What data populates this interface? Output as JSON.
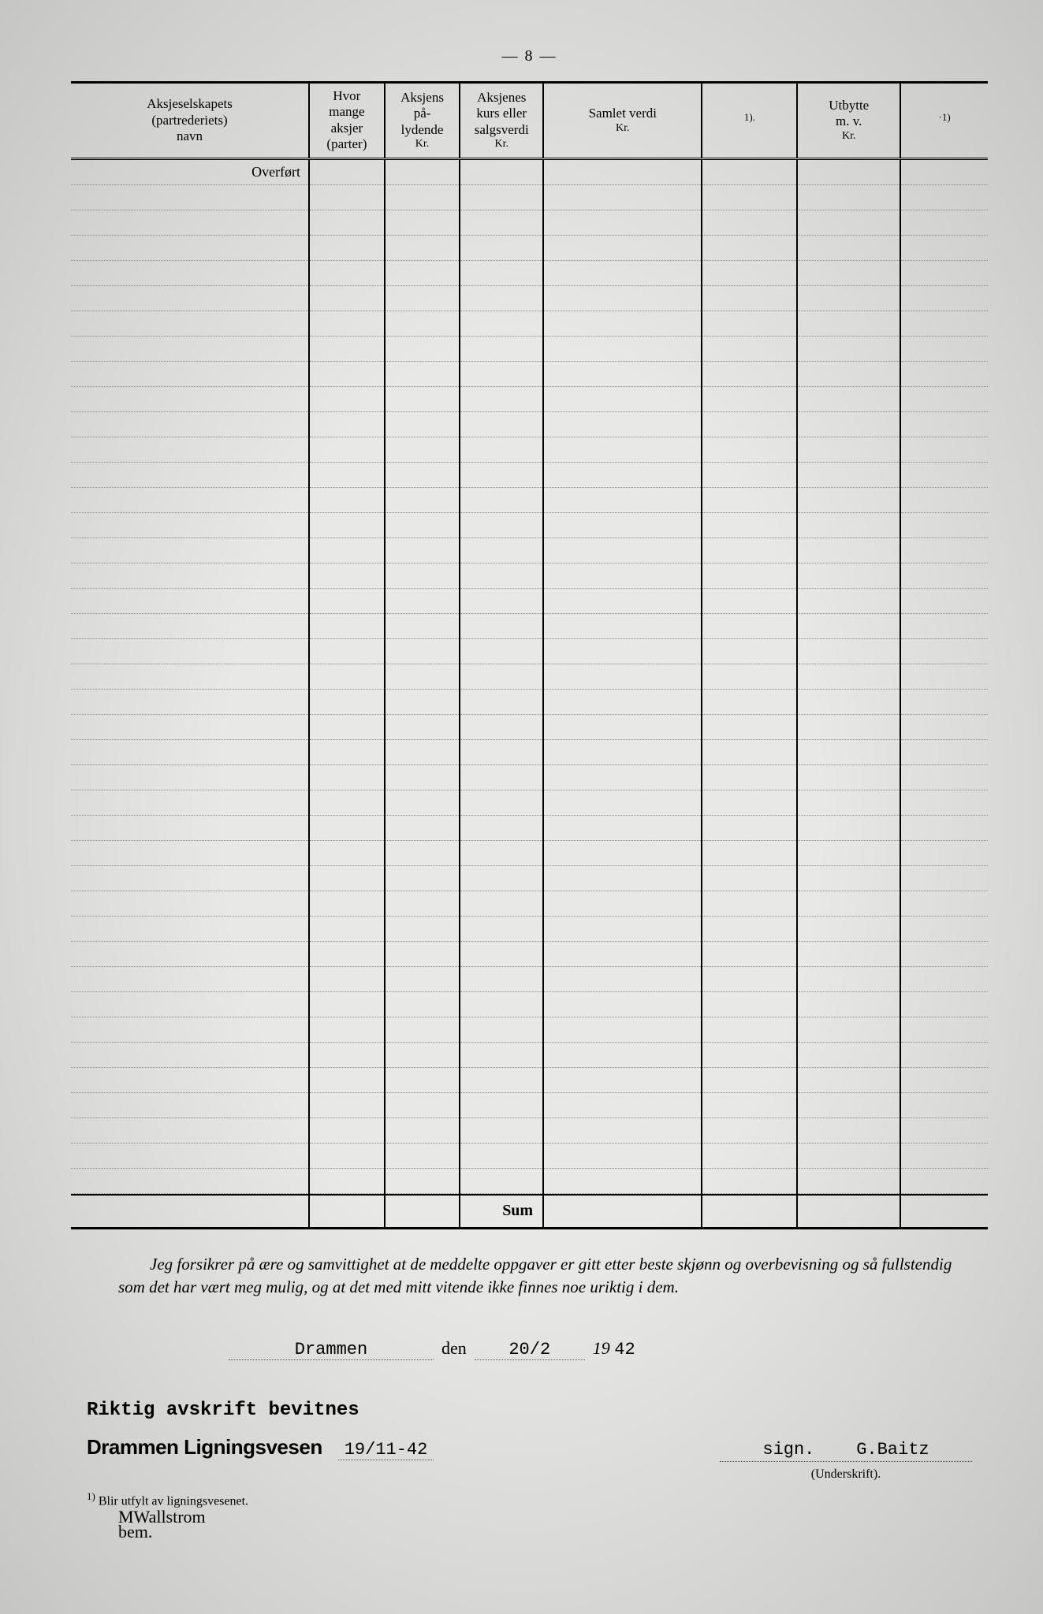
{
  "page_number": "— 8 —",
  "table": {
    "headers": {
      "c1": {
        "line1": "Aksjeselskapets",
        "line2": "(partrederiets)",
        "line3": "navn"
      },
      "c2": {
        "line1": "Hvor",
        "line2": "mange",
        "line3": "aksjer",
        "line4": "(parter)"
      },
      "c3": {
        "line1": "Aksjens",
        "line2": "på-",
        "line3": "lydende",
        "sub": "Kr."
      },
      "c4": {
        "line1": "Aksjenes",
        "line2": "kurs eller",
        "line3": "salgsverdi",
        "sub": "Kr."
      },
      "c5": {
        "line1": "Samlet verdi",
        "sub": "Kr."
      },
      "c6": {
        "sup": "1)."
      },
      "c7": {
        "line1": "Utbytte",
        "line2": "m. v.",
        "sub": "Kr."
      },
      "c8": {
        "sup": "·1)"
      }
    },
    "first_row_label": "Overført",
    "blank_rows": 40,
    "sum_label": "Sum"
  },
  "declaration": "Jeg forsikrer på ære og samvittighet at de meddelte oppgaver er gitt etter beste skjønn og overbevisning og så fullstendig som det har vært meg mulig, og at det med mitt vitende ikke finnes noe uriktig i dem.",
  "signature": {
    "place": "Drammen",
    "den": "den",
    "date": "20/2",
    "year_prefix": "19",
    "year_suffix": "42",
    "witness_line": "Riktig avskrift bevitnes",
    "stamp": "Drammen Ligningsvesen",
    "stamp_date": "19/11-42",
    "sign_prefix": "sign.",
    "sign_name": "G.Baitz",
    "sign_label": "(Underskrift)."
  },
  "footnote": {
    "marker": "1)",
    "text": "Blir utfylt av ligningsvesenet.",
    "scribble1": "MWallstrom",
    "scribble2": "bem."
  }
}
